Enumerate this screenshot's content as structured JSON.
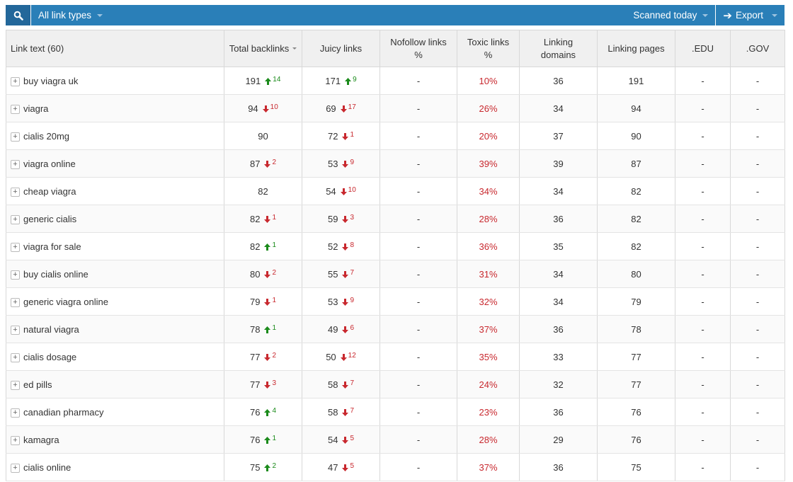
{
  "toolbar": {
    "search_icon": "magnifier-icon",
    "link_types": "All link types",
    "scanned": "Scanned today",
    "export": "Export",
    "export_icon": "arrow-right-icon"
  },
  "colors": {
    "toolbar": "#2a7fb8",
    "up": "#1a8a1a",
    "down": "#c8282e"
  },
  "columns": [
    "Link text (60)",
    "Total backlinks",
    "Juicy links",
    "Nofollow links %",
    "Toxic links %",
    "Linking domains",
    "Linking pages",
    ".EDU",
    ".GOV"
  ],
  "sorted_column": "Total backlinks",
  "rows": [
    {
      "text": "buy viagra uk",
      "total": "191",
      "td": "up",
      "tv": "14",
      "juicy": "171",
      "jd": "up",
      "jv": "9",
      "nofollow": "-",
      "toxic": "10%",
      "domains": "36",
      "pages": "191",
      "edu": "-",
      "gov": "-"
    },
    {
      "text": "viagra",
      "total": "94",
      "td": "down",
      "tv": "10",
      "juicy": "69",
      "jd": "down",
      "jv": "17",
      "nofollow": "-",
      "toxic": "26%",
      "domains": "34",
      "pages": "94",
      "edu": "-",
      "gov": "-"
    },
    {
      "text": "cialis 20mg",
      "total": "90",
      "td": "",
      "tv": "",
      "juicy": "72",
      "jd": "down",
      "jv": "1",
      "nofollow": "-",
      "toxic": "20%",
      "domains": "37",
      "pages": "90",
      "edu": "-",
      "gov": "-"
    },
    {
      "text": "viagra online",
      "total": "87",
      "td": "down",
      "tv": "2",
      "juicy": "53",
      "jd": "down",
      "jv": "9",
      "nofollow": "-",
      "toxic": "39%",
      "domains": "39",
      "pages": "87",
      "edu": "-",
      "gov": "-"
    },
    {
      "text": "cheap viagra",
      "total": "82",
      "td": "",
      "tv": "",
      "juicy": "54",
      "jd": "down",
      "jv": "10",
      "nofollow": "-",
      "toxic": "34%",
      "domains": "34",
      "pages": "82",
      "edu": "-",
      "gov": "-"
    },
    {
      "text": "generic cialis",
      "total": "82",
      "td": "down",
      "tv": "1",
      "juicy": "59",
      "jd": "down",
      "jv": "3",
      "nofollow": "-",
      "toxic": "28%",
      "domains": "36",
      "pages": "82",
      "edu": "-",
      "gov": "-"
    },
    {
      "text": "viagra for sale",
      "total": "82",
      "td": "up",
      "tv": "1",
      "juicy": "52",
      "jd": "down",
      "jv": "8",
      "nofollow": "-",
      "toxic": "36%",
      "domains": "35",
      "pages": "82",
      "edu": "-",
      "gov": "-"
    },
    {
      "text": "buy cialis online",
      "total": "80",
      "td": "down",
      "tv": "2",
      "juicy": "55",
      "jd": "down",
      "jv": "7",
      "nofollow": "-",
      "toxic": "31%",
      "domains": "34",
      "pages": "80",
      "edu": "-",
      "gov": "-"
    },
    {
      "text": "generic viagra online",
      "total": "79",
      "td": "down",
      "tv": "1",
      "juicy": "53",
      "jd": "down",
      "jv": "9",
      "nofollow": "-",
      "toxic": "32%",
      "domains": "34",
      "pages": "79",
      "edu": "-",
      "gov": "-"
    },
    {
      "text": "natural viagra",
      "total": "78",
      "td": "up",
      "tv": "1",
      "juicy": "49",
      "jd": "down",
      "jv": "6",
      "nofollow": "-",
      "toxic": "37%",
      "domains": "36",
      "pages": "78",
      "edu": "-",
      "gov": "-"
    },
    {
      "text": "cialis dosage",
      "total": "77",
      "td": "down",
      "tv": "2",
      "juicy": "50",
      "jd": "down",
      "jv": "12",
      "nofollow": "-",
      "toxic": "35%",
      "domains": "33",
      "pages": "77",
      "edu": "-",
      "gov": "-"
    },
    {
      "text": "ed pills",
      "total": "77",
      "td": "down",
      "tv": "3",
      "juicy": "58",
      "jd": "down",
      "jv": "7",
      "nofollow": "-",
      "toxic": "24%",
      "domains": "32",
      "pages": "77",
      "edu": "-",
      "gov": "-"
    },
    {
      "text": "canadian pharmacy",
      "total": "76",
      "td": "up",
      "tv": "4",
      "juicy": "58",
      "jd": "down",
      "jv": "7",
      "nofollow": "-",
      "toxic": "23%",
      "domains": "36",
      "pages": "76",
      "edu": "-",
      "gov": "-"
    },
    {
      "text": "kamagra",
      "total": "76",
      "td": "up",
      "tv": "1",
      "juicy": "54",
      "jd": "down",
      "jv": "5",
      "nofollow": "-",
      "toxic": "28%",
      "domains": "29",
      "pages": "76",
      "edu": "-",
      "gov": "-"
    },
    {
      "text": "cialis online",
      "total": "75",
      "td": "up",
      "tv": "2",
      "juicy": "47",
      "jd": "down",
      "jv": "5",
      "nofollow": "-",
      "toxic": "37%",
      "domains": "36",
      "pages": "75",
      "edu": "-",
      "gov": "-"
    }
  ]
}
